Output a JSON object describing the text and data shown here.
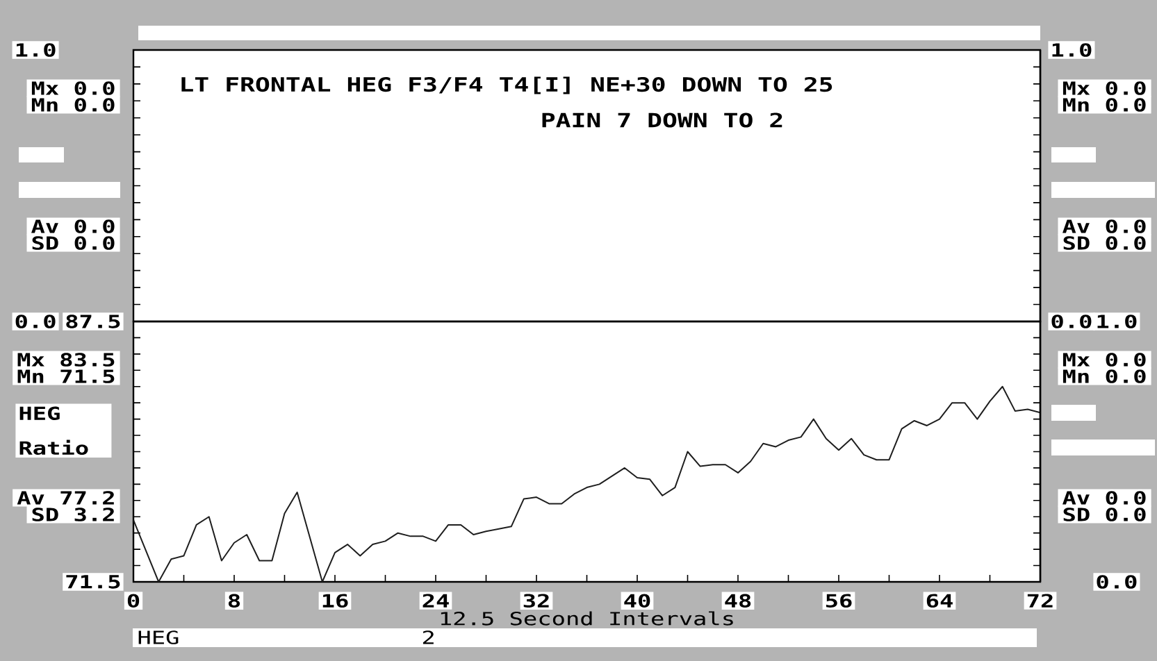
{
  "chart_data": [
    {
      "type": "line",
      "title": "LT FRONTAL HEG F3/F4 T4[I] NE+30 DOWN TO 25",
      "subtitle": "PAIN 7 DOWN TO 2",
      "xlim": [
        0,
        72
      ],
      "ylim": [
        0,
        1
      ],
      "yticks": [
        {
          "value": 0,
          "label": "0.0"
        },
        {
          "value": 0.0625,
          "label": null
        },
        {
          "value": 0.125,
          "label": null
        },
        {
          "value": 0.1875,
          "label": null
        },
        {
          "value": 0.25,
          "label": null
        },
        {
          "value": 0.3125,
          "label": null
        },
        {
          "value": 0.375,
          "label": null
        },
        {
          "value": 0.4375,
          "label": null
        },
        {
          "value": 0.5,
          "label": null
        },
        {
          "value": 0.5625,
          "label": null
        },
        {
          "value": 0.625,
          "label": null
        },
        {
          "value": 0.6875,
          "label": null
        },
        {
          "value": 0.75,
          "label": null
        },
        {
          "value": 0.8125,
          "label": null
        },
        {
          "value": 0.875,
          "label": null
        },
        {
          "value": 0.9375,
          "label": null
        },
        {
          "value": 1,
          "label": "1.0"
        }
      ],
      "y2lim": [
        0,
        1
      ],
      "y2ticks": [
        {
          "value": 0,
          "label": "0.0"
        },
        {
          "value": 0.0625,
          "label": null
        },
        {
          "value": 0.125,
          "label": null
        },
        {
          "value": 0.1875,
          "label": null
        },
        {
          "value": 0.25,
          "label": null
        },
        {
          "value": 0.3125,
          "label": null
        },
        {
          "value": 0.375,
          "label": null
        },
        {
          "value": 0.4375,
          "label": null
        },
        {
          "value": 0.5,
          "label": null
        },
        {
          "value": 0.5625,
          "label": null
        },
        {
          "value": 0.625,
          "label": null
        },
        {
          "value": 0.6875,
          "label": null
        },
        {
          "value": 0.75,
          "label": null
        },
        {
          "value": 0.8125,
          "label": null
        },
        {
          "value": 0.875,
          "label": null
        },
        {
          "value": 0.9375,
          "label": null
        },
        {
          "value": 1,
          "label": "1.0"
        }
      ],
      "tick_labels": "y",
      "annotations": [
        "Mx 0.0",
        "Mn 0.0",
        "Av 0.0",
        "SD 0.0",
        "Mx 0.0",
        "Mn 0.0",
        "Av 0.0",
        "SD 0.0"
      ]
    },
    {
      "type": "line",
      "xlabel": "12.5 Second Intervals",
      "ylabel": "HEG Ratio",
      "xlim": [
        0,
        72
      ],
      "xticks": [
        0,
        {
          "value": 4,
          "label": null
        },
        8,
        {
          "value": 12,
          "label": null
        },
        16,
        {
          "value": 20,
          "label": null
        },
        24,
        {
          "value": 28,
          "label": null
        },
        32,
        {
          "value": 36,
          "label": null
        },
        40,
        {
          "value": 44,
          "label": null
        },
        48,
        {
          "value": 52,
          "label": null
        },
        56,
        {
          "value": 60,
          "label": null
        },
        64,
        {
          "value": 68,
          "label": null
        },
        72
      ],
      "ylim": [
        71.5,
        87.5
      ],
      "yticks": [
        71.5,
        {
          "value": 72.5,
          "label": null
        },
        {
          "value": 73.5,
          "label": null
        },
        {
          "value": 74.5,
          "label": null
        },
        {
          "value": 75.5,
          "label": null
        },
        {
          "value": 76.5,
          "label": null
        },
        {
          "value": 77.5,
          "label": null
        },
        {
          "value": 78.5,
          "label": null
        },
        {
          "value": 79.5,
          "label": null
        },
        {
          "value": 80.5,
          "label": null
        },
        {
          "value": 81.5,
          "label": null
        },
        {
          "value": 82.5,
          "label": null
        },
        {
          "value": 83.5,
          "label": null
        },
        {
          "value": 84.5,
          "label": null
        },
        {
          "value": 85.5,
          "label": null
        },
        {
          "value": 86.5,
          "label": null
        },
        87.5
      ],
      "y2lim": [
        0,
        1
      ],
      "y2ticks": [
        {
          "value": 0,
          "label": "0.0"
        },
        {
          "value": 0.0625,
          "label": null
        },
        {
          "value": 0.125,
          "label": null
        },
        {
          "value": 0.1875,
          "label": null
        },
        {
          "value": 0.25,
          "label": null
        },
        {
          "value": 0.3125,
          "label": null
        },
        {
          "value": 0.375,
          "label": null
        },
        {
          "value": 0.4375,
          "label": null
        },
        {
          "value": 0.5,
          "label": null
        },
        {
          "value": 0.5625,
          "label": null
        },
        {
          "value": 0.625,
          "label": null
        },
        {
          "value": 0.6875,
          "label": null
        },
        {
          "value": 0.75,
          "label": null
        },
        {
          "value": 0.8125,
          "label": null
        },
        {
          "value": 0.875,
          "label": null
        },
        {
          "value": 0.9375,
          "label": null
        },
        {
          "value": 1,
          "label": "1.0"
        }
      ],
      "x": [
        0,
        2,
        3,
        4,
        5,
        6,
        7,
        8,
        9,
        10,
        11,
        12,
        13,
        15,
        16,
        17,
        18,
        19,
        20,
        21,
        22,
        23,
        24,
        25,
        26,
        27,
        28,
        30,
        31,
        32,
        33,
        34,
        35,
        36,
        37,
        39,
        40,
        41,
        42,
        43,
        44,
        45,
        46,
        47,
        48,
        49,
        50,
        51,
        52,
        53,
        54,
        55,
        56,
        57,
        58,
        59,
        60,
        61,
        62,
        63,
        64,
        65,
        66,
        67,
        68,
        69,
        70,
        71,
        72
      ],
      "values": [
        75.3,
        71.5,
        72.9,
        73.1,
        75.0,
        75.5,
        72.8,
        73.9,
        74.4,
        72.8,
        72.8,
        75.7,
        77.0,
        71.5,
        73.3,
        73.8,
        73.1,
        73.8,
        74.0,
        74.5,
        74.3,
        74.3,
        74.0,
        75.0,
        75.0,
        74.4,
        74.6,
        74.9,
        76.6,
        76.7,
        76.3,
        76.3,
        76.9,
        77.3,
        77.5,
        78.5,
        77.9,
        77.8,
        76.8,
        77.3,
        79.5,
        78.6,
        78.7,
        78.7,
        78.2,
        78.9,
        80.0,
        79.8,
        80.2,
        80.4,
        81.5,
        80.3,
        79.6,
        80.3,
        79.3,
        79.0,
        79.0,
        80.9,
        81.4,
        81.1,
        81.5,
        82.5,
        82.5,
        81.5,
        82.6,
        83.5,
        82.0,
        82.1,
        81.9
      ],
      "color": "#1e1e1e",
      "annotations": [
        "Mx 83.5",
        "Mn 71.5",
        "Av 77.2",
        "SD 3.2",
        "Mx 0.0",
        "Mn 0.0",
        "Av 0.0",
        "SD 0.0",
        "HEG",
        "2"
      ]
    }
  ]
}
